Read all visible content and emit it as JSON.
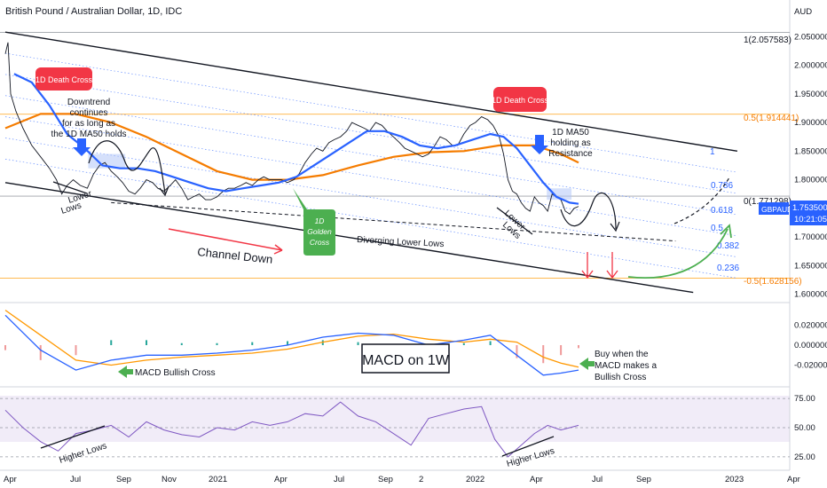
{
  "chart_data": {
    "type": "line",
    "title": "British Pound / Australian Dollar, 1D, IDC",
    "currency": "AUD",
    "symbol_tag": "GBPAUD",
    "last_price": "1.753500",
    "countdown": "10:21:05",
    "x_tick_labels": [
      "Apr",
      "Jul",
      "Sep",
      "Nov",
      "2021",
      "Apr",
      "Jul",
      "Sep",
      "2",
      "2022",
      "Apr",
      "Jul",
      "Sep",
      "2023",
      "Apr"
    ],
    "price_ticks": [
      "2.050000",
      "2.000000",
      "1.950000",
      "1.900000",
      "1.850000",
      "1.800000",
      "1.750000",
      "1.700000",
      "1.650000",
      "1.600000"
    ],
    "macd_ticks": [
      "0.020000",
      "0.000000",
      "-0.020000"
    ],
    "rsi_ticks": [
      "75.00",
      "50.00",
      "25.00"
    ],
    "fib_levels": [
      {
        "label": "1(2.057583)",
        "value": 2.057583
      },
      {
        "label": "0.5(1.914441)",
        "value": 1.914441
      },
      {
        "label": "0(1.771298)",
        "value": 1.771298
      },
      {
        "label": "-0.5(1.628156)",
        "value": 1.628156
      }
    ],
    "retracement_labels": [
      "0.786",
      "0.618",
      "0.5",
      "0.382",
      "0.236",
      "1"
    ],
    "price_series": [
      {
        "t": 0,
        "close": 2.02
      },
      {
        "t": 3,
        "close": 2.04
      },
      {
        "t": 6,
        "close": 1.95
      },
      {
        "t": 12,
        "close": 1.92
      },
      {
        "t": 20,
        "close": 1.89
      },
      {
        "t": 30,
        "close": 1.86
      },
      {
        "t": 40,
        "close": 1.84
      },
      {
        "t": 50,
        "close": 1.82
      },
      {
        "t": 58,
        "close": 1.8
      },
      {
        "t": 64,
        "close": 1.775
      },
      {
        "t": 70,
        "close": 1.79
      },
      {
        "t": 77,
        "close": 1.8
      },
      {
        "t": 85,
        "close": 1.79
      },
      {
        "t": 93,
        "close": 1.785
      },
      {
        "t": 100,
        "close": 1.81
      },
      {
        "t": 107,
        "close": 1.825
      },
      {
        "t": 113,
        "close": 1.83
      },
      {
        "t": 120,
        "close": 1.815
      },
      {
        "t": 127,
        "close": 1.805
      },
      {
        "t": 133,
        "close": 1.795
      },
      {
        "t": 140,
        "close": 1.78
      },
      {
        "t": 147,
        "close": 1.775
      },
      {
        "t": 153,
        "close": 1.785
      },
      {
        "t": 160,
        "close": 1.8
      },
      {
        "t": 167,
        "close": 1.795
      },
      {
        "t": 173,
        "close": 1.785
      },
      {
        "t": 180,
        "close": 1.78
      },
      {
        "t": 187,
        "close": 1.79
      },
      {
        "t": 193,
        "close": 1.8
      },
      {
        "t": 200,
        "close": 1.785
      },
      {
        "t": 207,
        "close": 1.765
      },
      {
        "t": 213,
        "close": 1.77
      },
      {
        "t": 220,
        "close": 1.775
      },
      {
        "t": 227,
        "close": 1.765
      },
      {
        "t": 233,
        "close": 1.765
      },
      {
        "t": 240,
        "close": 1.77
      },
      {
        "t": 247,
        "close": 1.78
      },
      {
        "t": 253,
        "close": 1.785
      },
      {
        "t": 260,
        "close": 1.785
      },
      {
        "t": 267,
        "close": 1.79
      },
      {
        "t": 273,
        "close": 1.795
      },
      {
        "t": 280,
        "close": 1.79
      },
      {
        "t": 287,
        "close": 1.8
      },
      {
        "t": 293,
        "close": 1.805
      },
      {
        "t": 300,
        "close": 1.8
      },
      {
        "t": 307,
        "close": 1.8
      },
      {
        "t": 313,
        "close": 1.8
      },
      {
        "t": 320,
        "close": 1.795
      },
      {
        "t": 327,
        "close": 1.8
      },
      {
        "t": 333,
        "close": 1.81
      },
      {
        "t": 340,
        "close": 1.83
      },
      {
        "t": 347,
        "close": 1.845
      },
      {
        "t": 353,
        "close": 1.855
      },
      {
        "t": 360,
        "close": 1.85
      },
      {
        "t": 367,
        "close": 1.865
      },
      {
        "t": 373,
        "close": 1.87
      },
      {
        "t": 380,
        "close": 1.875
      },
      {
        "t": 387,
        "close": 1.885
      },
      {
        "t": 393,
        "close": 1.9
      },
      {
        "t": 400,
        "close": 1.895
      },
      {
        "t": 407,
        "close": 1.89
      },
      {
        "t": 413,
        "close": 1.885
      },
      {
        "t": 420,
        "close": 1.9
      },
      {
        "t": 427,
        "close": 1.895
      },
      {
        "t": 433,
        "close": 1.885
      },
      {
        "t": 440,
        "close": 1.875
      },
      {
        "t": 447,
        "close": 1.865
      },
      {
        "t": 453,
        "close": 1.855
      },
      {
        "t": 460,
        "close": 1.85
      },
      {
        "t": 467,
        "close": 1.845
      },
      {
        "t": 473,
        "close": 1.84
      },
      {
        "t": 480,
        "close": 1.845
      },
      {
        "t": 487,
        "close": 1.86
      },
      {
        "t": 493,
        "close": 1.875
      },
      {
        "t": 500,
        "close": 1.87
      },
      {
        "t": 507,
        "close": 1.86
      },
      {
        "t": 513,
        "close": 1.86
      },
      {
        "t": 520,
        "close": 1.88
      },
      {
        "t": 527,
        "close": 1.895
      },
      {
        "t": 533,
        "close": 1.9
      },
      {
        "t": 540,
        "close": 1.91
      },
      {
        "t": 547,
        "close": 1.905
      },
      {
        "t": 553,
        "close": 1.895
      },
      {
        "t": 560,
        "close": 1.875
      },
      {
        "t": 565,
        "close": 1.845
      },
      {
        "t": 570,
        "close": 1.8
      },
      {
        "t": 575,
        "close": 1.78
      },
      {
        "t": 580,
        "close": 1.775
      },
      {
        "t": 585,
        "close": 1.76
      },
      {
        "t": 590,
        "close": 1.75
      },
      {
        "t": 595,
        "close": 1.745
      },
      {
        "t": 600,
        "close": 1.77
      },
      {
        "t": 605,
        "close": 1.76
      },
      {
        "t": 610,
        "close": 1.755
      },
      {
        "t": 615,
        "close": 1.745
      },
      {
        "t": 620,
        "close": 1.775
      },
      {
        "t": 625,
        "close": 1.77
      },
      {
        "t": 630,
        "close": 1.765
      },
      {
        "t": 635,
        "close": 1.745
      },
      {
        "t": 640,
        "close": 1.74
      },
      {
        "t": 645,
        "close": 1.75
      },
      {
        "t": 650,
        "close": 1.7535
      }
    ],
    "ma50_series": [
      {
        "t": 10,
        "value": 1.985
      },
      {
        "t": 30,
        "value": 1.97
      },
      {
        "t": 50,
        "value": 1.93
      },
      {
        "t": 70,
        "value": 1.88
      },
      {
        "t": 90,
        "value": 1.855
      },
      {
        "t": 110,
        "value": 1.825
      },
      {
        "t": 130,
        "value": 1.82
      },
      {
        "t": 150,
        "value": 1.82
      },
      {
        "t": 170,
        "value": 1.815
      },
      {
        "t": 190,
        "value": 1.805
      },
      {
        "t": 210,
        "value": 1.795
      },
      {
        "t": 230,
        "value": 1.785
      },
      {
        "t": 250,
        "value": 1.78
      },
      {
        "t": 270,
        "value": 1.785
      },
      {
        "t": 290,
        "value": 1.79
      },
      {
        "t": 310,
        "value": 1.795
      },
      {
        "t": 330,
        "value": 1.805
      },
      {
        "t": 350,
        "value": 1.825
      },
      {
        "t": 370,
        "value": 1.845
      },
      {
        "t": 390,
        "value": 1.865
      },
      {
        "t": 410,
        "value": 1.885
      },
      {
        "t": 430,
        "value": 1.885
      },
      {
        "t": 450,
        "value": 1.875
      },
      {
        "t": 470,
        "value": 1.86
      },
      {
        "t": 490,
        "value": 1.855
      },
      {
        "t": 510,
        "value": 1.86
      },
      {
        "t": 530,
        "value": 1.87
      },
      {
        "t": 550,
        "value": 1.88
      },
      {
        "t": 565,
        "value": 1.875
      },
      {
        "t": 580,
        "value": 1.855
      },
      {
        "t": 595,
        "value": 1.825
      },
      {
        "t": 610,
        "value": 1.795
      },
      {
        "t": 625,
        "value": 1.77
      },
      {
        "t": 640,
        "value": 1.76
      },
      {
        "t": 650,
        "value": 1.758
      }
    ],
    "ma200_series": [
      {
        "t": 0,
        "value": 1.89
      },
      {
        "t": 40,
        "value": 1.915
      },
      {
        "t": 80,
        "value": 1.915
      },
      {
        "t": 120,
        "value": 1.9
      },
      {
        "t": 160,
        "value": 1.875
      },
      {
        "t": 200,
        "value": 1.845
      },
      {
        "t": 240,
        "value": 1.815
      },
      {
        "t": 280,
        "value": 1.8
      },
      {
        "t": 320,
        "value": 1.8
      },
      {
        "t": 360,
        "value": 1.808
      },
      {
        "t": 400,
        "value": 1.825
      },
      {
        "t": 440,
        "value": 1.84
      },
      {
        "t": 480,
        "value": 1.848
      },
      {
        "t": 520,
        "value": 1.85
      },
      {
        "t": 560,
        "value": 1.86
      },
      {
        "t": 600,
        "value": 1.86
      },
      {
        "t": 630,
        "value": 1.845
      },
      {
        "t": 650,
        "value": 1.83
      }
    ],
    "macd_series": [
      {
        "t": 0,
        "value": 0.03
      },
      {
        "t": 40,
        "value": -0.005
      },
      {
        "t": 80,
        "value": -0.025
      },
      {
        "t": 120,
        "value": -0.015
      },
      {
        "t": 160,
        "value": -0.01
      },
      {
        "t": 200,
        "value": -0.01
      },
      {
        "t": 240,
        "value": -0.008
      },
      {
        "t": 280,
        "value": -0.005
      },
      {
        "t": 320,
        "value": 0.0
      },
      {
        "t": 360,
        "value": 0.008
      },
      {
        "t": 400,
        "value": 0.012
      },
      {
        "t": 440,
        "value": 0.01
      },
      {
        "t": 480,
        "value": 0.0
      },
      {
        "t": 520,
        "value": 0.005
      },
      {
        "t": 550,
        "value": 0.01
      },
      {
        "t": 580,
        "value": -0.01
      },
      {
        "t": 610,
        "value": -0.03
      },
      {
        "t": 630,
        "value": -0.028
      },
      {
        "t": 650,
        "value": -0.025
      }
    ],
    "signal_series": [
      {
        "t": 0,
        "value": 0.035
      },
      {
        "t": 40,
        "value": 0.01
      },
      {
        "t": 80,
        "value": -0.015
      },
      {
        "t": 120,
        "value": -0.02
      },
      {
        "t": 160,
        "value": -0.015
      },
      {
        "t": 200,
        "value": -0.012
      },
      {
        "t": 240,
        "value": -0.01
      },
      {
        "t": 280,
        "value": -0.008
      },
      {
        "t": 320,
        "value": -0.004
      },
      {
        "t": 360,
        "value": 0.003
      },
      {
        "t": 400,
        "value": 0.009
      },
      {
        "t": 440,
        "value": 0.011
      },
      {
        "t": 480,
        "value": 0.006
      },
      {
        "t": 520,
        "value": 0.003
      },
      {
        "t": 550,
        "value": 0.006
      },
      {
        "t": 580,
        "value": 0.003
      },
      {
        "t": 610,
        "value": -0.012
      },
      {
        "t": 630,
        "value": -0.018
      },
      {
        "t": 650,
        "value": -0.022
      }
    ],
    "rsi_series": [
      {
        "t": 0,
        "value": 65
      },
      {
        "t": 20,
        "value": 50
      },
      {
        "t": 40,
        "value": 38
      },
      {
        "t": 60,
        "value": 30
      },
      {
        "t": 80,
        "value": 45
      },
      {
        "t": 100,
        "value": 48
      },
      {
        "t": 120,
        "value": 52
      },
      {
        "t": 140,
        "value": 42
      },
      {
        "t": 160,
        "value": 55
      },
      {
        "t": 180,
        "value": 48
      },
      {
        "t": 200,
        "value": 44
      },
      {
        "t": 220,
        "value": 42
      },
      {
        "t": 240,
        "value": 50
      },
      {
        "t": 260,
        "value": 48
      },
      {
        "t": 280,
        "value": 55
      },
      {
        "t": 300,
        "value": 52
      },
      {
        "t": 320,
        "value": 55
      },
      {
        "t": 340,
        "value": 62
      },
      {
        "t": 360,
        "value": 60
      },
      {
        "t": 380,
        "value": 72
      },
      {
        "t": 400,
        "value": 60
      },
      {
        "t": 420,
        "value": 55
      },
      {
        "t": 440,
        "value": 45
      },
      {
        "t": 460,
        "value": 35
      },
      {
        "t": 480,
        "value": 58
      },
      {
        "t": 500,
        "value": 62
      },
      {
        "t": 520,
        "value": 66
      },
      {
        "t": 540,
        "value": 68
      },
      {
        "t": 555,
        "value": 40
      },
      {
        "t": 570,
        "value": 25
      },
      {
        "t": 585,
        "value": 35
      },
      {
        "t": 600,
        "value": 45
      },
      {
        "t": 615,
        "value": 52
      },
      {
        "t": 630,
        "value": 48
      },
      {
        "t": 650,
        "value": 52
      }
    ],
    "ylim": [
      1.59,
      2.08
    ],
    "macd_ylim": [
      -0.04,
      0.04
    ],
    "rsi_ylim": [
      15,
      85
    ],
    "colors": {
      "price": "#131722",
      "ma50": "#2962ff",
      "ma200": "#f57c00",
      "channel": "#131722",
      "fib_blue": "#2962ff",
      "fib_orange": "#ff9800",
      "signal_red": "#f23645",
      "bull_green": "#4caf50",
      "rsi": "#7e57c2"
    }
  },
  "annotations": {
    "death_cross_1": "1D Death Cross",
    "death_cross_2": "1D Death Cross",
    "golden_cross": [
      "1D",
      "Golden",
      "Cross"
    ],
    "downtrend": [
      "Downtrend",
      "continues",
      "for as long as",
      "the 1D MA50 holds"
    ],
    "ma50_resistance": [
      "1D MA50",
      "holding as",
      "Resistance"
    ],
    "lower_lows_1": [
      "Lower",
      "Lows"
    ],
    "lower_lows_2": [
      "Lower",
      "Lows"
    ],
    "channel_down": "Channel Down",
    "diverging_lows": "Diverging Lower Lows",
    "macd_title": "MACD on 1W",
    "macd_bullish": "MACD Bullish Cross",
    "buy_when": [
      "Buy when the",
      "MACD makes a",
      "Bullish Cross"
    ],
    "higher_lows_1": "Higher Lows",
    "higher_lows_2": "Higher Lows"
  }
}
